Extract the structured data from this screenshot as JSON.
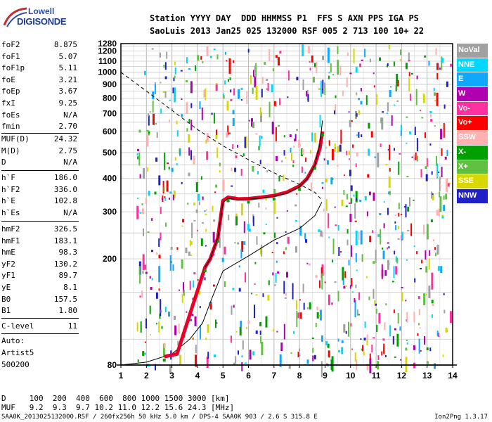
{
  "logo": {
    "line1": "Lowell",
    "line2": "DIGISONDE"
  },
  "header": {
    "line1": "Station YYYY DAY  DDD HHMMSS P1  FFS S AXN PPS IGA PS",
    "line2": "SaoLuis 2013 Jan25 025 132000 RSF 005 2 713 100 10+ 22"
  },
  "params_group1": [
    {
      "label": "foF2",
      "value": "8.875"
    },
    {
      "label": "foF1",
      "value": "5.07"
    },
    {
      "label": "foF1p",
      "value": "5.11"
    },
    {
      "label": "foE",
      "value": "3.21"
    },
    {
      "label": "foEp",
      "value": "3.67"
    },
    {
      "label": "fxI",
      "value": "9.25"
    },
    {
      "label": "foEs",
      "value": "N/A"
    },
    {
      "label": "fmin",
      "value": "2.70"
    }
  ],
  "params_group2": [
    {
      "label": "MUF(D)",
      "value": "24.32"
    },
    {
      "label": "M(D)",
      "value": "2.75"
    },
    {
      "label": "D",
      "value": "N/A"
    }
  ],
  "params_group3": [
    {
      "label": "h`F",
      "value": "186.0"
    },
    {
      "label": "h`F2",
      "value": "336.0"
    },
    {
      "label": "h`E",
      "value": "102.8"
    },
    {
      "label": "h`Es",
      "value": "N/A"
    }
  ],
  "params_group4": [
    {
      "label": "hmF2",
      "value": "326.5"
    },
    {
      "label": "hmF1",
      "value": "183.1"
    },
    {
      "label": "hmE",
      "value": "98.3"
    },
    {
      "label": "yF2",
      "value": "130.2"
    },
    {
      "label": "yF1",
      "value": "89.7"
    },
    {
      "label": "yE",
      "value": "8.1"
    },
    {
      "label": "B0",
      "value": "157.5"
    },
    {
      "label": "B1",
      "value": "1.80"
    }
  ],
  "params_group5": [
    {
      "label": "C-level",
      "value": "11"
    }
  ],
  "auto": {
    "line1": "Auto:",
    "line2": "Artist5",
    "line3": "500200"
  },
  "muf_table": {
    "line1": "D     100  200  400  600  800 1000 1500 3000 [km]",
    "line2": "MUF   9.2  9.3  9.7 10.2 11.0 12.2 15.6 24.3 [MHz]"
  },
  "footer": {
    "left": "SAA0K_2013025132000.RSF / 260fx256h 50 kHz 5.0 km / DPS-4 SAA0K 903 / 2.6 S 315.8 E",
    "right": "Ion2Png 1.3.17"
  },
  "legend": [
    {
      "label": "NoVal",
      "color": "#a0a0a0"
    },
    {
      "label": "NNE",
      "color": "#00d8ff"
    },
    {
      "label": "E",
      "color": "#10a8ff"
    },
    {
      "label": "W",
      "color": "#b000b0"
    },
    {
      "label": "Vo-",
      "color": "#ff30a0"
    },
    {
      "label": "Vo+",
      "color": "#ff0000"
    },
    {
      "label": "SSW",
      "color": "#ffb0b0"
    },
    {
      "label": "X-",
      "color": "#00a000"
    },
    {
      "label": "X+",
      "color": "#60c040"
    },
    {
      "label": "SSE",
      "color": "#d8d800"
    },
    {
      "label": "NNW",
      "color": "#2020c8"
    }
  ],
  "chart_data": {
    "type": "scatter",
    "title": "",
    "xlabel": "",
    "ylabel": "",
    "xlim": [
      1,
      14
    ],
    "ylim": [
      80,
      1280
    ],
    "y_scale": "log",
    "x_ticks": [
      1,
      2,
      3,
      4,
      5,
      6,
      7,
      8,
      9,
      10,
      11,
      12,
      13,
      14
    ],
    "y_ticks": [
      80,
      200,
      300,
      400,
      500,
      600,
      700,
      800,
      900,
      1000,
      1100,
      1200,
      1280
    ],
    "grid": true,
    "legend_position": "right",
    "series": [
      {
        "kind": "true_height_profile",
        "color": "#000000",
        "x": [
          1.0,
          2.0,
          3.0,
          3.7,
          4.2,
          4.6,
          5.0,
          6.0,
          7.0,
          8.0,
          8.6,
          8.875
        ],
        "y": [
          80,
          82,
          88,
          100,
          115,
          145,
          180,
          205,
          235,
          260,
          290,
          326
        ]
      },
      {
        "kind": "virtual_height_trace",
        "color": "#ff0000",
        "x": [
          2.7,
          3.2,
          4.3,
          4.5,
          4.8,
          5.0,
          5.2,
          5.6,
          6.0,
          6.5,
          7.0,
          7.5,
          8.0,
          8.3,
          8.6,
          8.8,
          8.9
        ],
        "y": [
          86,
          88,
          186,
          200,
          240,
          330,
          340,
          335,
          336,
          340,
          345,
          355,
          375,
          400,
          450,
          520,
          600
        ]
      },
      {
        "kind": "fitted_trace",
        "color": "#000000",
        "x": [
          4.3,
          4.5,
          4.8,
          5.0,
          5.2,
          5.6,
          6.0,
          6.5,
          7.0,
          7.5,
          8.0,
          8.3,
          8.6,
          8.8,
          8.9
        ],
        "y": [
          186,
          200,
          240,
          325,
          337,
          332,
          334,
          338,
          343,
          352,
          372,
          398,
          448,
          540,
          660
        ]
      },
      {
        "kind": "muf_dashed",
        "color": "#000000",
        "x": [
          1.0,
          2.0,
          3.0,
          4.0,
          5.0,
          6.0,
          7.0,
          8.0,
          8.6,
          8.9
        ],
        "y": [
          1000,
          850,
          720,
          610,
          530,
          470,
          420,
          380,
          355,
          330
        ]
      }
    ]
  }
}
